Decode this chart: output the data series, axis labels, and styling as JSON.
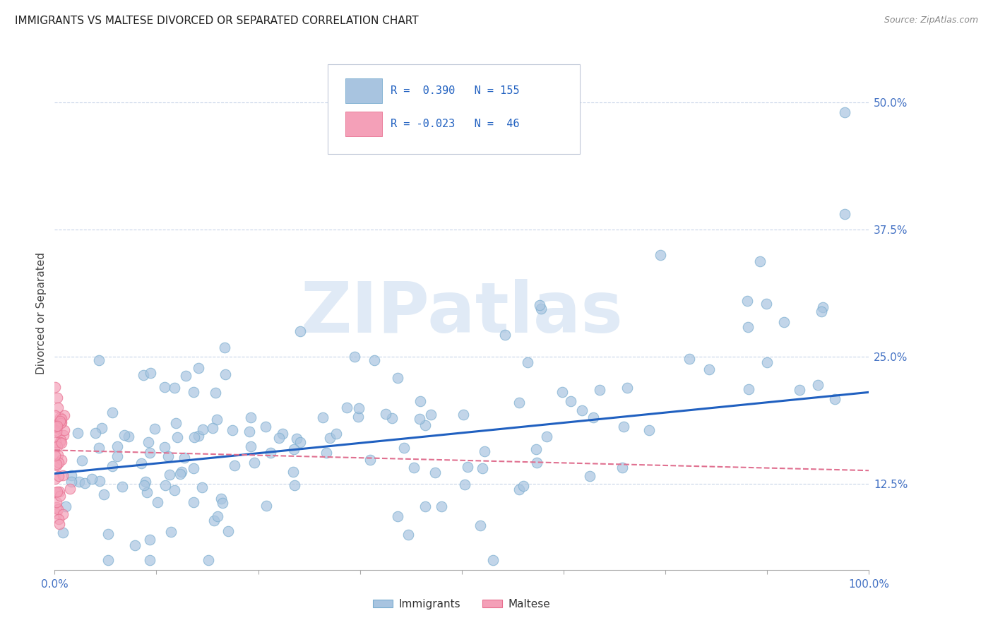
{
  "title": "IMMIGRANTS VS MALTESE DIVORCED OR SEPARATED CORRELATION CHART",
  "source": "Source: ZipAtlas.com",
  "ylabel": "Divorced or Separated",
  "xlim": [
    0.0,
    1.0
  ],
  "ylim": [
    0.04,
    0.545
  ],
  "yticks": [
    0.125,
    0.25,
    0.375,
    0.5
  ],
  "ytick_labels": [
    "12.5%",
    "25.0%",
    "37.5%",
    "50.0%"
  ],
  "blue_R": 0.39,
  "blue_N": 155,
  "pink_R": -0.023,
  "pink_N": 46,
  "blue_color": "#a8c4e0",
  "pink_color": "#f4a0b8",
  "blue_edge_color": "#7aadcf",
  "pink_edge_color": "#e87090",
  "blue_line_color": "#2060c0",
  "pink_line_color": "#e07090",
  "grid_color": "#c8d4e8",
  "watermark": "ZIPatlas",
  "watermark_color": "#ccddf0",
  "blue_trend_x0": 0.0,
  "blue_trend_y0": 0.135,
  "blue_trend_x1": 1.0,
  "blue_trend_y1": 0.215,
  "pink_trend_x0": 0.0,
  "pink_trend_y0": 0.158,
  "pink_trend_x1": 1.0,
  "pink_trend_y1": 0.138
}
